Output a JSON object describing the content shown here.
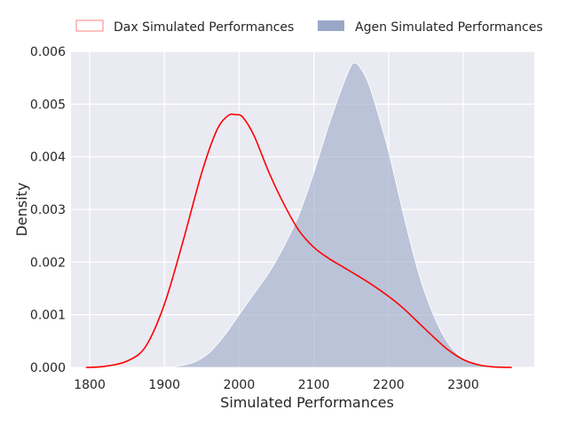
{
  "chart_data": {
    "type": "area",
    "xlabel": "Simulated Performances",
    "ylabel": "Density",
    "xlim": [
      1775,
      2395
    ],
    "ylim": [
      0,
      0.006
    ],
    "xticks": [
      1800,
      1900,
      2000,
      2100,
      2200,
      2300
    ],
    "xtick_labels": [
      "1800",
      "1900",
      "2000",
      "2100",
      "2200",
      "2300"
    ],
    "yticks": [
      0,
      0.001,
      0.002,
      0.003,
      0.004,
      0.005,
      0.006
    ],
    "ytick_labels": [
      "0.000",
      "0.001",
      "0.002",
      "0.003",
      "0.004",
      "0.005",
      "0.006"
    ],
    "grid": true,
    "legend_position": "top, outside plot area",
    "series": [
      {
        "name": "Dax Simulated Performances",
        "style": "line",
        "color": "#ff0000",
        "x": [
          1795,
          1820,
          1850,
          1875,
          1900,
          1925,
          1950,
          1970,
          1985,
          1995,
          2005,
          2020,
          2040,
          2060,
          2080,
          2100,
          2120,
          2140,
          2160,
          2180,
          2200,
          2220,
          2240,
          2260,
          2280,
          2300,
          2320,
          2340,
          2365
        ],
        "y": [
          0.0,
          2e-05,
          0.00012,
          0.0004,
          0.0012,
          0.0024,
          0.0037,
          0.0045,
          0.00478,
          0.0048,
          0.00475,
          0.0044,
          0.0037,
          0.0031,
          0.0026,
          0.00228,
          0.00207,
          0.0019,
          0.00173,
          0.00155,
          0.00135,
          0.00112,
          0.00085,
          0.00058,
          0.00033,
          0.00015,
          5e-05,
          1e-05,
          0.0
        ]
      },
      {
        "name": "Agen Simulated Performances",
        "style": "filled",
        "color": "#9aa8c7",
        "x": [
          1900,
          1920,
          1940,
          1960,
          1980,
          2000,
          2020,
          2040,
          2060,
          2080,
          2100,
          2120,
          2140,
          2150,
          2155,
          2160,
          2170,
          2180,
          2200,
          2220,
          2240,
          2260,
          2280,
          2300,
          2320,
          2340,
          2360
        ],
        "y": [
          0.0,
          3e-05,
          0.0001,
          0.00028,
          0.0006,
          0.001,
          0.0014,
          0.0018,
          0.0023,
          0.0029,
          0.0037,
          0.0046,
          0.0054,
          0.00573,
          0.00578,
          0.00573,
          0.0055,
          0.0051,
          0.0041,
          0.0029,
          0.0018,
          0.001,
          0.00045,
          0.00017,
          5e-05,
          1e-05,
          0.0
        ]
      }
    ]
  }
}
